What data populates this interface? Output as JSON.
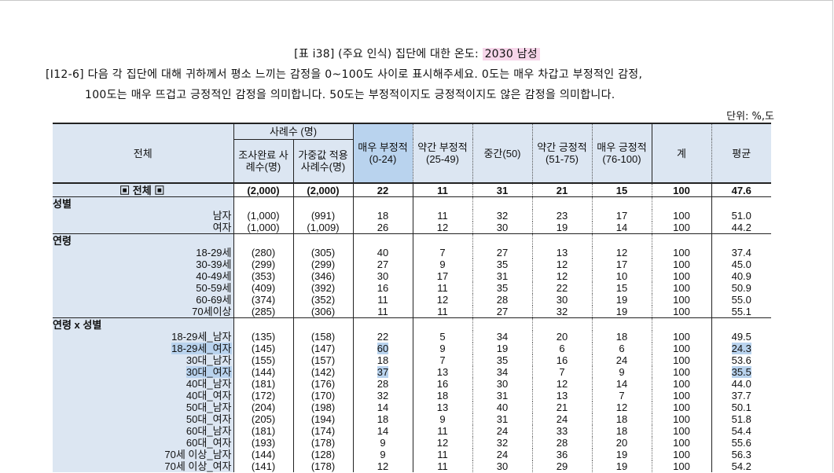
{
  "title": {
    "prefix": "[표 i38] (주요 인식) 집단에 대한 온도: ",
    "highlight": "2030 남성"
  },
  "question": {
    "line1": "[I12-6] 다음 각 집단에 대해 귀하께서 평소 느끼는 감정을 0~100도 사이로 표시해주세요. 0도는 매우 차갑고 부정적인 감정,",
    "line2": "100도는 매우 뜨겁고 긍정적인 감정을 의미합니다. 50도는 부정적이지도 긍정적이지도 않은 감정을 의미합니다."
  },
  "unit": "단위: %,도",
  "header": {
    "overall": "전체",
    "cases": "사례수 (명)",
    "completed": "조사완료 사례수(명)",
    "weighted": "가중값 적용 사례수(명)",
    "very_neg": "매우 부정적(0-24)",
    "some_neg": "약간 부정적(25-49)",
    "mid": "중간(50)",
    "some_pos": "약간 긍정적(51-75)",
    "very_pos": "매우 긍정적(76-100)",
    "sum": "계",
    "avg": "평균"
  },
  "total_row": {
    "label": "▣ 전체 ▣",
    "n": "(2,000)",
    "w": "(2,000)",
    "v": [
      "22",
      "11",
      "31",
      "21",
      "15",
      "100",
      "47.6"
    ]
  },
  "groups": [
    {
      "name": "성별",
      "rows": [
        {
          "label": "남자",
          "n": "(1,000)",
          "w": "(991)",
          "v": [
            "18",
            "11",
            "32",
            "23",
            "17",
            "100",
            "51.0"
          ]
        },
        {
          "label": "여자",
          "n": "(1,000)",
          "w": "(1,009)",
          "v": [
            "26",
            "12",
            "30",
            "19",
            "14",
            "100",
            "44.2"
          ]
        }
      ]
    },
    {
      "name": "연령",
      "rows": [
        {
          "label": "18-29세",
          "n": "(280)",
          "w": "(305)",
          "v": [
            "40",
            "7",
            "27",
            "13",
            "12",
            "100",
            "37.4"
          ]
        },
        {
          "label": "30-39세",
          "n": "(299)",
          "w": "(299)",
          "v": [
            "27",
            "9",
            "35",
            "12",
            "17",
            "100",
            "45.0"
          ]
        },
        {
          "label": "40-49세",
          "n": "(353)",
          "w": "(346)",
          "v": [
            "30",
            "17",
            "31",
            "12",
            "10",
            "100",
            "40.9"
          ]
        },
        {
          "label": "50-59세",
          "n": "(409)",
          "w": "(392)",
          "v": [
            "16",
            "11",
            "35",
            "22",
            "15",
            "100",
            "50.9"
          ]
        },
        {
          "label": "60-69세",
          "n": "(374)",
          "w": "(352)",
          "v": [
            "11",
            "12",
            "28",
            "30",
            "19",
            "100",
            "55.0"
          ]
        },
        {
          "label": "70세이상",
          "n": "(285)",
          "w": "(306)",
          "v": [
            "11",
            "11",
            "27",
            "32",
            "19",
            "100",
            "55.1"
          ]
        }
      ]
    },
    {
      "name": "연령 x 성별",
      "rows": [
        {
          "label": "18-29세_남자",
          "n": "(135)",
          "w": "(158)",
          "v": [
            "22",
            "5",
            "34",
            "20",
            "18",
            "100",
            "49.5"
          ]
        },
        {
          "label": "18-29세_여자",
          "n": "(145)",
          "w": "(147)",
          "v": [
            "60",
            "9",
            "19",
            "6",
            "6",
            "100",
            "24.3"
          ],
          "hl": true
        },
        {
          "label": "30대_남자",
          "n": "(155)",
          "w": "(157)",
          "v": [
            "18",
            "7",
            "35",
            "16",
            "24",
            "100",
            "53.6"
          ]
        },
        {
          "label": "30대_여자",
          "n": "(144)",
          "w": "(142)",
          "v": [
            "37",
            "13",
            "34",
            "7",
            "9",
            "100",
            "35.5"
          ],
          "hl": true
        },
        {
          "label": "40대_남자",
          "n": "(181)",
          "w": "(176)",
          "v": [
            "28",
            "16",
            "30",
            "12",
            "14",
            "100",
            "44.0"
          ]
        },
        {
          "label": "40대_여자",
          "n": "(172)",
          "w": "(170)",
          "v": [
            "32",
            "18",
            "31",
            "13",
            "7",
            "100",
            "37.7"
          ]
        },
        {
          "label": "50대_남자",
          "n": "(204)",
          "w": "(198)",
          "v": [
            "14",
            "13",
            "40",
            "21",
            "12",
            "100",
            "50.1"
          ]
        },
        {
          "label": "50대_여자",
          "n": "(205)",
          "w": "(194)",
          "v": [
            "18",
            "9",
            "31",
            "24",
            "18",
            "100",
            "51.8"
          ]
        },
        {
          "label": "60대_남자",
          "n": "(181)",
          "w": "(174)",
          "v": [
            "14",
            "11",
            "24",
            "33",
            "18",
            "100",
            "54.4"
          ]
        },
        {
          "label": "60대_여자",
          "n": "(193)",
          "w": "(178)",
          "v": [
            "9",
            "12",
            "32",
            "28",
            "20",
            "100",
            "55.6"
          ]
        },
        {
          "label": "70세 이상_남자",
          "n": "(144)",
          "w": "(128)",
          "v": [
            "9",
            "11",
            "24",
            "36",
            "19",
            "100",
            "56.3"
          ]
        },
        {
          "label": "70세 이상_여자",
          "n": "(141)",
          "w": "(178)",
          "v": [
            "12",
            "11",
            "30",
            "29",
            "19",
            "100",
            "54.2"
          ]
        }
      ]
    }
  ]
}
